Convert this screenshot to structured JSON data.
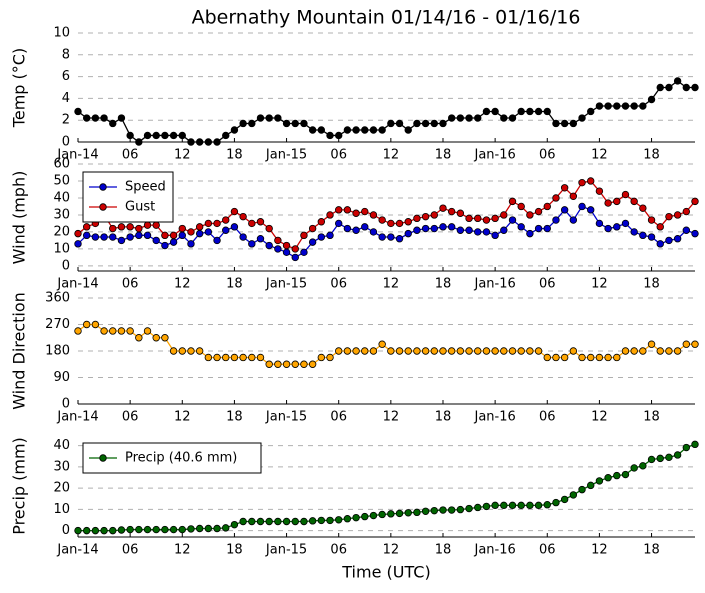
{
  "title": "Abernathy Mountain 01/14/16 - 01/16/16",
  "chart_data": [
    {
      "type": "line",
      "ylabel": "Temp (°C)",
      "color": "#000000",
      "x": [
        0,
        1,
        2,
        3,
        4,
        5,
        6,
        7,
        8,
        9,
        10,
        11,
        12,
        13,
        14,
        15,
        16,
        17,
        18,
        19,
        20,
        21,
        22,
        23,
        24,
        25,
        26,
        27,
        28,
        29,
        30,
        31,
        32,
        33,
        34,
        35,
        36,
        37,
        38,
        39,
        40,
        41,
        42,
        43,
        44,
        45,
        46,
        47,
        48,
        49,
        50,
        51,
        52,
        53,
        54,
        55,
        56,
        57,
        58,
        59,
        60,
        61,
        62,
        63,
        64,
        65,
        66,
        67,
        68,
        69,
        70,
        71
      ],
      "values": [
        2.8,
        2.2,
        2.2,
        2.2,
        1.7,
        2.2,
        0.6,
        0,
        0.6,
        0.6,
        0.6,
        0.6,
        0.6,
        0,
        0,
        0,
        0,
        0.6,
        1.1,
        1.7,
        1.7,
        2.2,
        2.2,
        2.2,
        1.7,
        1.7,
        1.7,
        1.1,
        1.1,
        0.6,
        0.6,
        1.1,
        1.1,
        1.1,
        1.1,
        1.1,
        1.7,
        1.7,
        1.1,
        1.7,
        1.7,
        1.7,
        1.7,
        2.2,
        2.2,
        2.2,
        2.2,
        2.8,
        2.8,
        2.2,
        2.2,
        2.8,
        2.8,
        2.8,
        2.8,
        1.7,
        1.7,
        1.7,
        2.2,
        2.8,
        3.3,
        3.3,
        3.3,
        3.3,
        3.3,
        3.3,
        3.9,
        5.0,
        5.0,
        5.6,
        5.0,
        5.0
      ],
      "xlim": [
        0,
        71
      ],
      "xticks": [
        {
          "value": 0,
          "label": "Jan-14"
        },
        {
          "value": 6,
          "label": "06"
        },
        12,
        18,
        {
          "value": 24,
          "label": "Jan-15"
        },
        {
          "value": 30,
          "label": "06"
        },
        {
          "value": 36,
          "label": "12"
        },
        {
          "value": 42,
          "label": "18"
        },
        {
          "value": 48,
          "label": "Jan-16"
        },
        {
          "value": 54,
          "label": "06"
        },
        {
          "value": 60,
          "label": "12"
        },
        {
          "value": 66,
          "label": "18"
        }
      ],
      "ylim": [
        0,
        10
      ],
      "yticks": [
        0,
        2,
        4,
        6,
        8,
        10
      ],
      "grid": true
    },
    {
      "type": "line",
      "ylabel": "Wind (mph)",
      "legend": "upper left",
      "x": [
        0,
        1,
        2,
        3,
        4,
        5,
        6,
        7,
        8,
        9,
        10,
        11,
        12,
        13,
        14,
        15,
        16,
        17,
        18,
        19,
        20,
        21,
        22,
        23,
        24,
        25,
        26,
        27,
        28,
        29,
        30,
        31,
        32,
        33,
        34,
        35,
        36,
        37,
        38,
        39,
        40,
        41,
        42,
        43,
        44,
        45,
        46,
        47,
        48,
        49,
        50,
        51,
        52,
        53,
        54,
        55,
        56,
        57,
        58,
        59,
        60,
        61,
        62,
        63,
        64,
        65,
        66,
        67,
        68,
        69,
        70,
        71
      ],
      "series": [
        {
          "name": "Speed",
          "color": "#0000cc",
          "values": [
            13,
            18,
            17,
            17,
            17,
            15,
            17,
            18,
            18,
            15,
            12,
            14,
            18,
            13,
            19,
            20,
            15,
            21,
            23,
            17,
            13,
            16,
            12,
            10,
            8,
            5,
            8,
            14,
            17,
            18,
            25,
            22,
            21,
            23,
            20,
            17,
            17,
            16,
            19,
            21,
            22,
            22,
            23,
            23,
            21,
            21,
            20,
            20,
            18,
            21,
            27,
            23,
            19,
            22,
            22,
            27,
            33,
            27,
            35,
            33,
            25,
            22,
            23,
            25,
            20,
            18,
            17,
            13,
            15,
            16,
            21,
            19
          ]
        },
        {
          "name": "Gust",
          "color": "#cc0000",
          "values": [
            19,
            23,
            25,
            30,
            22,
            23,
            23,
            22,
            24,
            24,
            18,
            18,
            22,
            20,
            23,
            25,
            25,
            27,
            32,
            29,
            25,
            26,
            22,
            15,
            12,
            10,
            18,
            22,
            26,
            30,
            33,
            33,
            31,
            32,
            30,
            27,
            25,
            25,
            26,
            28,
            29,
            30,
            34,
            32,
            31,
            28,
            28,
            27,
            28,
            30,
            38,
            35,
            30,
            32,
            35,
            40,
            46,
            41,
            49,
            50,
            44,
            37,
            38,
            42,
            38,
            34,
            27,
            23,
            29,
            30,
            32,
            38
          ]
        }
      ],
      "xlim": [
        0,
        71
      ],
      "xticks": [
        {
          "value": 0,
          "label": "Jan-14"
        },
        {
          "value": 6,
          "label": "06"
        },
        12,
        18,
        {
          "value": 24,
          "label": "Jan-15"
        },
        {
          "value": 30,
          "label": "06"
        },
        {
          "value": 36,
          "label": "12"
        },
        {
          "value": 42,
          "label": "18"
        },
        {
          "value": 48,
          "label": "Jan-16"
        },
        {
          "value": 54,
          "label": "06"
        },
        {
          "value": 60,
          "label": "12"
        },
        {
          "value": 66,
          "label": "18"
        }
      ],
      "ylim": [
        -3,
        60
      ],
      "yticks": [
        0,
        10,
        20,
        30,
        40,
        50,
        60
      ],
      "grid": true
    },
    {
      "type": "line",
      "ylabel": "Wind Direction",
      "color": "#ffa500",
      "x": [
        0,
        1,
        2,
        3,
        4,
        5,
        6,
        7,
        8,
        9,
        10,
        11,
        12,
        13,
        14,
        15,
        16,
        17,
        18,
        19,
        20,
        21,
        22,
        23,
        24,
        25,
        26,
        27,
        28,
        29,
        30,
        31,
        32,
        33,
        34,
        35,
        36,
        37,
        38,
        39,
        40,
        41,
        42,
        43,
        44,
        45,
        46,
        47,
        48,
        49,
        50,
        51,
        52,
        53,
        54,
        55,
        56,
        57,
        58,
        59,
        60,
        61,
        62,
        63,
        64,
        65,
        66,
        67,
        68,
        69,
        70,
        71
      ],
      "values": [
        248,
        270,
        270,
        248,
        248,
        248,
        248,
        225,
        248,
        225,
        225,
        180,
        180,
        180,
        180,
        158,
        158,
        158,
        158,
        158,
        158,
        158,
        135,
        135,
        135,
        135,
        135,
        135,
        158,
        158,
        180,
        180,
        180,
        180,
        180,
        203,
        180,
        180,
        180,
        180,
        180,
        180,
        180,
        180,
        180,
        180,
        180,
        180,
        180,
        180,
        180,
        180,
        180,
        180,
        158,
        158,
        158,
        180,
        158,
        158,
        158,
        158,
        158,
        180,
        180,
        180,
        203,
        180,
        180,
        180,
        203,
        203
      ],
      "xlim": [
        0,
        71
      ],
      "xticks": [
        {
          "value": 0,
          "label": "Jan-14"
        },
        {
          "value": 6,
          "label": "06"
        },
        12,
        18,
        {
          "value": 24,
          "label": "Jan-15"
        },
        {
          "value": 30,
          "label": "06"
        },
        {
          "value": 36,
          "label": "12"
        },
        {
          "value": 42,
          "label": "18"
        },
        {
          "value": 48,
          "label": "Jan-16"
        },
        {
          "value": 54,
          "label": "06"
        },
        {
          "value": 60,
          "label": "12"
        },
        {
          "value": 66,
          "label": "18"
        }
      ],
      "ylim": [
        0,
        360
      ],
      "yticks": [
        0,
        90,
        180,
        270,
        360
      ],
      "grid": true
    },
    {
      "type": "line",
      "ylabel": "Precip (mm)",
      "xlabel": "Time (UTC)",
      "legend": "upper left",
      "x": [
        0,
        1,
        2,
        3,
        4,
        5,
        6,
        7,
        8,
        9,
        10,
        11,
        12,
        13,
        14,
        15,
        16,
        17,
        18,
        19,
        20,
        21,
        22,
        23,
        24,
        25,
        26,
        27,
        28,
        29,
        30,
        31,
        32,
        33,
        34,
        35,
        36,
        37,
        38,
        39,
        40,
        41,
        42,
        43,
        44,
        45,
        46,
        47,
        48,
        49,
        50,
        51,
        52,
        53,
        54,
        55,
        56,
        57,
        58,
        59,
        60,
        61,
        62,
        63,
        64,
        65,
        66,
        67,
        68,
        69,
        70,
        71
      ],
      "series": [
        {
          "name": "Precip (40.6 mm)",
          "color": "#006400",
          "values": [
            0,
            0,
            0,
            0,
            0,
            0.3,
            0.5,
            0.5,
            0.5,
            0.5,
            0.5,
            0.5,
            0.5,
            0.8,
            1,
            1,
            1,
            1.3,
            2.8,
            4.3,
            4.3,
            4.3,
            4.3,
            4.3,
            4.3,
            4.3,
            4.3,
            4.6,
            4.8,
            4.8,
            5.1,
            5.6,
            6.1,
            6.6,
            7.1,
            7.6,
            7.9,
            8.1,
            8.4,
            8.6,
            9.1,
            9.4,
            9.7,
            9.7,
            9.9,
            10.4,
            10.9,
            11.4,
            11.9,
            11.9,
            11.9,
            11.9,
            11.9,
            11.9,
            12.2,
            13.2,
            14.7,
            16.8,
            19.3,
            21.3,
            23.4,
            24.9,
            25.9,
            26.4,
            29.5,
            30.5,
            33.5,
            34.0,
            34.5,
            35.6,
            39.1,
            40.6
          ]
        }
      ],
      "xlim": [
        0,
        71
      ],
      "xticks": [
        {
          "value": 0,
          "label": "Jan-14"
        },
        {
          "value": 6,
          "label": "06"
        },
        12,
        18,
        {
          "value": 24,
          "label": "Jan-15"
        },
        {
          "value": 30,
          "label": "06"
        },
        {
          "value": 36,
          "label": "12"
        },
        {
          "value": 42,
          "label": "18"
        },
        {
          "value": 48,
          "label": "Jan-16"
        },
        {
          "value": 54,
          "label": "06"
        },
        {
          "value": 60,
          "label": "12"
        },
        {
          "value": 66,
          "label": "18"
        }
      ],
      "ylim": [
        -3,
        45
      ],
      "yticks": [
        0,
        10,
        20,
        30,
        40
      ],
      "grid": true
    }
  ]
}
